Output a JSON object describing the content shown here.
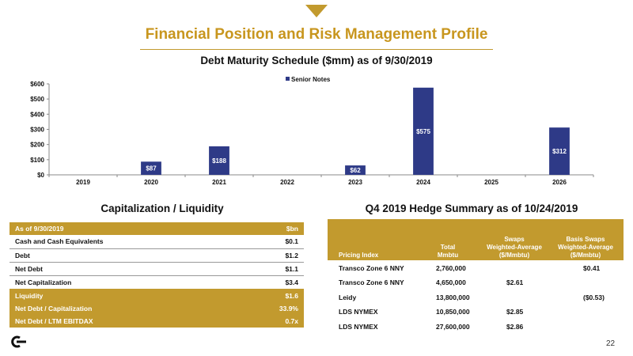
{
  "page": {
    "title": "Financial Position and Risk Management Profile",
    "number": "22",
    "accent_color": "#c29a2e"
  },
  "chart_data": {
    "type": "bar",
    "title": "Debt Maturity Schedule ($mm) as of 9/30/2019",
    "categories": [
      "2019",
      "2020",
      "2021",
      "2022",
      "2023",
      "2024",
      "2025",
      "2026"
    ],
    "series": [
      {
        "name": "Senior Notes",
        "color": "#2e3a87",
        "values": [
          0,
          87,
          188,
          0,
          62,
          575,
          0,
          312
        ]
      }
    ],
    "data_labels": [
      "",
      "$87",
      "$188",
      "",
      "$62",
      "$575",
      "",
      "$312"
    ],
    "ylim": [
      0,
      600
    ],
    "yticks": [
      0,
      100,
      200,
      300,
      400,
      500,
      600
    ],
    "ytick_labels": [
      "$0",
      "$100",
      "$200",
      "$300",
      "$400",
      "$500",
      "$600"
    ],
    "legend": "top-center",
    "grid": false
  },
  "capitalization": {
    "title": "Capitalization / Liquidity",
    "header": {
      "label": "As of 9/30/2019",
      "value": "$bn"
    },
    "rows": [
      {
        "label": "Cash and Cash Equivalents",
        "value": "$0.1"
      },
      {
        "label": "Debt",
        "value": "$1.2"
      },
      {
        "label": "Net Debt",
        "value": "$1.1"
      },
      {
        "label": "Net Capitalization",
        "value": "$3.4"
      },
      {
        "label": "Liquidity",
        "value": "$1.6"
      },
      {
        "label": "Net Debt / Capitalization",
        "value": "33.9%"
      },
      {
        "label": "Net Debt / LTM EBITDAX",
        "value": "0.7x"
      }
    ]
  },
  "hedge": {
    "title": "Q4 2019 Hedge Summary as of 10/24/2019",
    "columns": {
      "pricing_index": "Pricing Index",
      "total": [
        "Total",
        "Mmbtu"
      ],
      "swaps": [
        "Swaps",
        "Weighted-Average",
        "($/Mmbtu)"
      ],
      "basis": [
        "Basis Swaps",
        "Weighted-Average",
        "($/Mmbtu)"
      ]
    },
    "rows": [
      {
        "index": "Transco Zone 6 NNY",
        "total": "2,760,000",
        "swaps": "",
        "basis": "$0.41"
      },
      {
        "index": "Transco Zone 6 NNY",
        "total": "4,650,000",
        "swaps": "$2.61",
        "basis": ""
      },
      {
        "index": "Leidy",
        "total": "13,800,000",
        "swaps": "",
        "basis": "($0.53)"
      },
      {
        "index": "LDS NYMEX",
        "total": "10,850,000",
        "swaps": "$2.85",
        "basis": ""
      },
      {
        "index": "LDS NYMEX",
        "total": "27,600,000",
        "swaps": "$2.86",
        "basis": ""
      }
    ]
  },
  "logo": {
    "icon": "company-logo-icon"
  }
}
